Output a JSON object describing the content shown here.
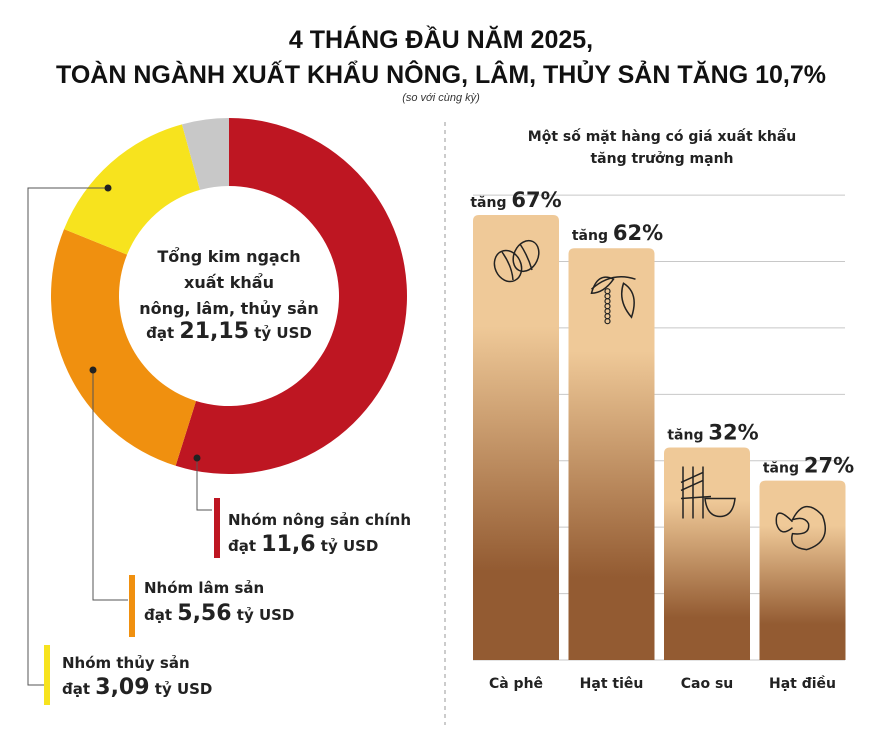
{
  "title": {
    "line1": "4 THÁNG ĐẦU NĂM 2025,",
    "line2": "TOÀN NGÀNH XUẤT KHẨU NÔNG, LÂM, THỦY SẢN TĂNG 10,7%",
    "note": "(so với cùng kỳ)"
  },
  "chart_data": [
    {
      "type": "pie",
      "donut": true,
      "center_text": [
        "Tổng kim ngạch",
        "xuất khẩu",
        "nông, lâm, thủy sản"
      ],
      "total_prefix": "đạt",
      "total_value": "21,15",
      "total_unit": "tỷ USD",
      "total": 21.15,
      "slices": [
        {
          "name": "Nhóm nông sản chính",
          "prefix": "đạt",
          "label": "11,6",
          "unit": "tỷ USD",
          "value": 11.6,
          "color": "#be1622"
        },
        {
          "name": "Nhóm lâm sản",
          "prefix": "đạt",
          "label": "5,56",
          "unit": "tỷ USD",
          "value": 5.56,
          "color": "#f0900f"
        },
        {
          "name": "Nhóm thủy sản",
          "prefix": "đạt",
          "label": "3,09",
          "unit": "tỷ USD",
          "value": 3.09,
          "color": "#f7e31e"
        },
        {
          "value": 0.9,
          "color": "#c8c8c8"
        }
      ]
    },
    {
      "type": "bar",
      "title": [
        "Một số mặt hàng có giá xuất khẩu",
        "tăng trưởng mạnh"
      ],
      "categories": [
        "Cà phê",
        "Hạt tiêu",
        "Cao su",
        "Hạt điều"
      ],
      "values": [
        67,
        62,
        32,
        27
      ],
      "label_prefix": "tăng",
      "value_labels": [
        "67%",
        "62%",
        "32%",
        "27%"
      ],
      "icons": [
        "coffee-bean-icon",
        "pepper-icon",
        "rubber-tree-icon",
        "cashew-icon"
      ],
      "ylim": [
        0,
        70
      ],
      "grid": true,
      "bar_color_top": "#efc998",
      "bar_color_bottom": "#935b32"
    }
  ]
}
